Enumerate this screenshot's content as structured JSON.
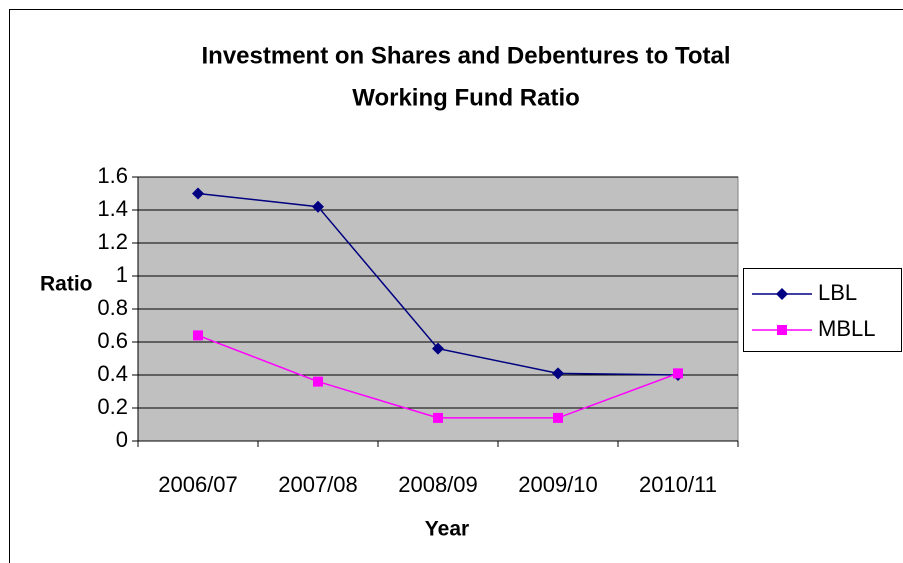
{
  "chart_data": {
    "type": "line",
    "title": [
      "Investment on Shares and Debentures to Total",
      "Working Fund Ratio"
    ],
    "x_label": "Year",
    "y_label": "Ratio",
    "categories": [
      "2006/07",
      "2007/08",
      "2008/09",
      "2009/10",
      "2010/11"
    ],
    "series": [
      {
        "name": "LBL",
        "color": "#000080",
        "marker": "diamond",
        "values": [
          1.5,
          1.42,
          0.56,
          0.41,
          0.4
        ]
      },
      {
        "name": "MBLL",
        "color": "#ff00ff",
        "marker": "square",
        "values": [
          0.64,
          0.36,
          0.14,
          0.14,
          0.41
        ]
      }
    ],
    "ylim": [
      0,
      1.6
    ],
    "yticks": [
      0,
      0.2,
      0.4,
      0.6,
      0.8,
      1,
      1.2,
      1.4,
      1.6
    ],
    "grid": true,
    "legend": "right"
  }
}
